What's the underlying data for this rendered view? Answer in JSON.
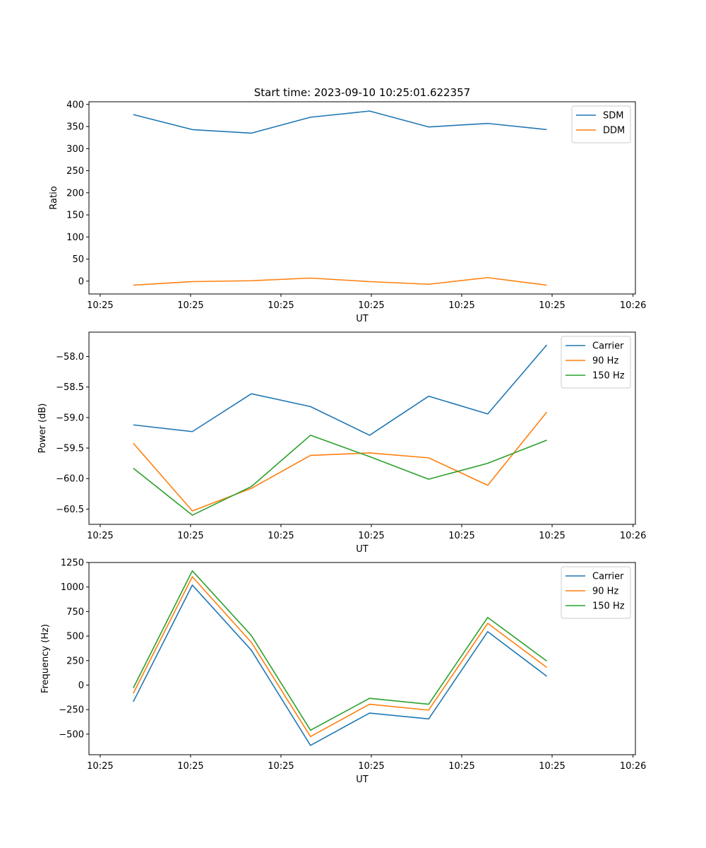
{
  "figure": {
    "title": "Start time: 2023-09-10 10:25:01.622357"
  },
  "chart_data": [
    {
      "type": "line",
      "xlabel": "UT",
      "ylabel": "Ratio",
      "x": [
        1,
        2,
        3,
        4,
        5,
        6,
        7,
        8
      ],
      "xlim": [
        0.25,
        9.5
      ],
      "xticks": [
        0.44,
        1.97,
        3.5,
        5.03,
        6.56,
        8.09,
        9.46
      ],
      "xtick_labels": [
        "10:25",
        "10:25",
        "10:25",
        "10:25",
        "10:25",
        "10:25",
        "10:26"
      ],
      "ylim": [
        -29,
        406
      ],
      "yticks": [
        0,
        50,
        100,
        150,
        200,
        250,
        300,
        350,
        400
      ],
      "ytick_labels": [
        "0",
        "50",
        "100",
        "150",
        "200",
        "250",
        "300",
        "350",
        "400"
      ],
      "legend_position": "top-right",
      "series": [
        {
          "name": "SDM",
          "color": "#1f77b4",
          "values": [
            377,
            343,
            335,
            371,
            385,
            349,
            357,
            343
          ]
        },
        {
          "name": "DDM",
          "color": "#ff7f0e",
          "values": [
            -9,
            -1,
            1,
            7,
            -1,
            -7,
            8,
            -9
          ]
        }
      ]
    },
    {
      "type": "line",
      "xlabel": "UT",
      "ylabel": "Power (dB)",
      "x": [
        1,
        2,
        3,
        4,
        5,
        6,
        7,
        8
      ],
      "xlim": [
        0.25,
        9.5
      ],
      "xticks": [
        0.44,
        1.97,
        3.5,
        5.03,
        6.56,
        8.09,
        9.46
      ],
      "xtick_labels": [
        "10:25",
        "10:25",
        "10:25",
        "10:25",
        "10:25",
        "10:25",
        "10:26"
      ],
      "ylim": [
        -60.75,
        -57.6
      ],
      "yticks": [
        -60.5,
        -60.0,
        -59.5,
        -59.0,
        -58.5,
        -58.0
      ],
      "ytick_labels": [
        "−60.5",
        "−60.0",
        "−59.5",
        "−59.0",
        "−58.5",
        "−58.0"
      ],
      "legend_position": "top-right",
      "series": [
        {
          "name": "Carrier",
          "color": "#1f77b4",
          "values": [
            -59.12,
            -59.23,
            -58.61,
            -58.82,
            -59.29,
            -58.65,
            -58.94,
            -57.81
          ]
        },
        {
          "name": "90 Hz",
          "color": "#ff7f0e",
          "values": [
            -59.42,
            -60.53,
            -60.16,
            -59.62,
            -59.58,
            -59.66,
            -60.11,
            -58.91
          ]
        },
        {
          "name": "150 Hz",
          "color": "#2ca02c",
          "values": [
            -59.83,
            -60.6,
            -60.13,
            -59.29,
            -59.64,
            -60.01,
            -59.75,
            -59.37
          ]
        }
      ]
    },
    {
      "type": "line",
      "xlabel": "UT",
      "ylabel": "Frequency (Hz)",
      "x": [
        1,
        2,
        3,
        4,
        5,
        6,
        7,
        8
      ],
      "xlim": [
        0.25,
        9.5
      ],
      "xticks": [
        0.44,
        1.97,
        3.5,
        5.03,
        6.56,
        8.09,
        9.46
      ],
      "xtick_labels": [
        "10:25",
        "10:25",
        "10:25",
        "10:25",
        "10:25",
        "10:25",
        "10:26"
      ],
      "ylim": [
        -710,
        1250
      ],
      "yticks": [
        -500,
        -250,
        0,
        250,
        500,
        750,
        1000,
        1250
      ],
      "ytick_labels": [
        "−500",
        "−250",
        "0",
        "250",
        "500",
        "750",
        "1000",
        "1250"
      ],
      "legend_position": "top-right",
      "series": [
        {
          "name": "Carrier",
          "color": "#1f77b4",
          "values": [
            -170,
            1020,
            355,
            -615,
            -285,
            -345,
            545,
            90
          ]
        },
        {
          "name": "90 Hz",
          "color": "#ff7f0e",
          "values": [
            -85,
            1105,
            435,
            -525,
            -195,
            -255,
            630,
            180
          ]
        },
        {
          "name": "150 Hz",
          "color": "#2ca02c",
          "values": [
            -30,
            1165,
            505,
            -460,
            -135,
            -195,
            690,
            245
          ]
        }
      ]
    }
  ]
}
